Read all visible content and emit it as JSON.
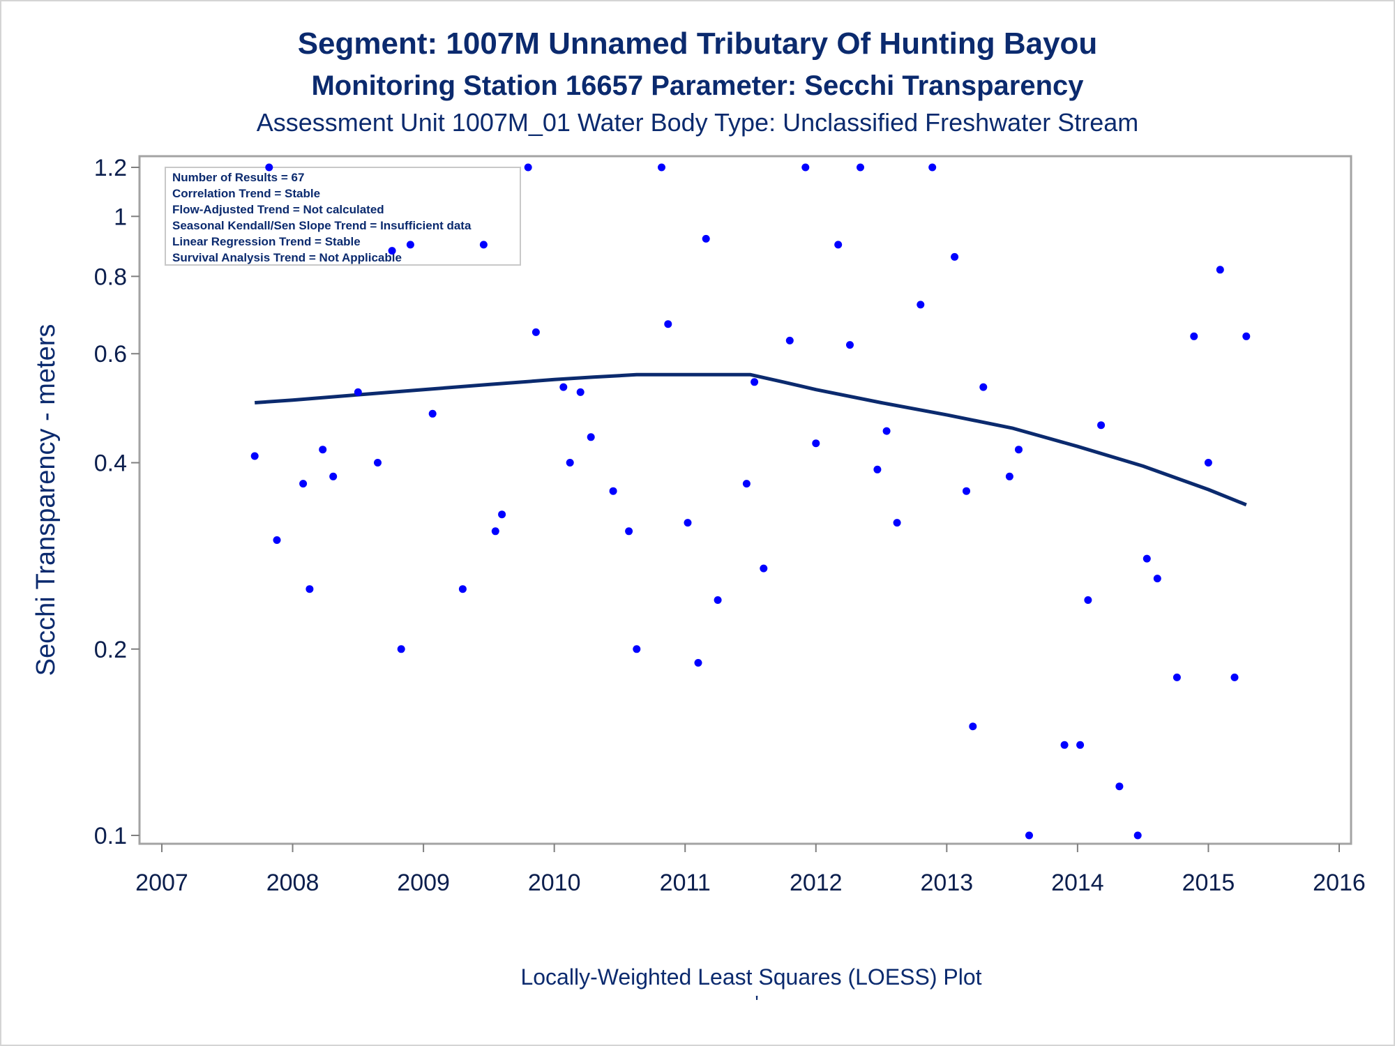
{
  "chart_data": {
    "type": "scatter",
    "title": "Segment: 1007M  Unnamed Tributary Of Hunting Bayou",
    "subtitle": "Monitoring Station 16657 Parameter: Secchi Transparency",
    "subtitle2": "Assessment Unit 1007M_01   Water Body Type: Unclassified Freshwater Stream",
    "xlabel": "Locally-Weighted Least Squares (LOESS) Plot",
    "footnote": "'",
    "ylabel": "Secchi Transparency - meters",
    "y_scale": "log",
    "xlim": [
      2007,
      2016
    ],
    "ylim": [
      0.1,
      1.2
    ],
    "x_ticks": [
      "2007",
      "2008",
      "2009",
      "2010",
      "2011",
      "2012",
      "2013",
      "2014",
      "2015",
      "2016"
    ],
    "y_ticks": [
      "0.1",
      "0.2",
      "0.4",
      "0.6",
      "0.8",
      "1",
      "1.2"
    ],
    "grid": false,
    "stats_box": {
      "placement": "top-left",
      "lines": [
        "Number of Results = 67",
        "Correlation Trend = Stable",
        "Flow-Adjusted Trend = Not calculated",
        "Seasonal Kendall/Sen Slope Trend = Insufficient data",
        "Linear Regression Trend = Stable",
        "Survival Analysis Trend = Not Applicable"
      ]
    },
    "series": [
      {
        "type": "scatter",
        "color": "#0000ff",
        "points": [
          [
            2007.71,
            0.41
          ],
          [
            2007.82,
            1.2
          ],
          [
            2007.88,
            0.3
          ],
          [
            2008.08,
            0.37
          ],
          [
            2008.13,
            0.25
          ],
          [
            2008.23,
            0.42
          ],
          [
            2008.31,
            0.38
          ],
          [
            2008.5,
            0.52
          ],
          [
            2008.65,
            0.4
          ],
          [
            2008.76,
            0.88
          ],
          [
            2008.83,
            0.2
          ],
          [
            2008.9,
            0.9
          ],
          [
            2009.07,
            0.48
          ],
          [
            2009.3,
            0.25
          ],
          [
            2009.46,
            0.9
          ],
          [
            2009.55,
            0.31
          ],
          [
            2009.6,
            0.33
          ],
          [
            2009.8,
            1.2
          ],
          [
            2009.86,
            0.65
          ],
          [
            2010.07,
            0.53
          ],
          [
            2010.12,
            0.4
          ],
          [
            2010.2,
            0.52
          ],
          [
            2010.28,
            0.44
          ],
          [
            2010.45,
            0.36
          ],
          [
            2010.57,
            0.31
          ],
          [
            2010.63,
            0.2
          ],
          [
            2010.82,
            1.2
          ],
          [
            2010.87,
            0.67
          ],
          [
            2011.02,
            0.32
          ],
          [
            2011.1,
            0.19
          ],
          [
            2011.16,
            0.92
          ],
          [
            2011.25,
            0.24
          ],
          [
            2011.47,
            0.37
          ],
          [
            2011.53,
            0.54
          ],
          [
            2011.6,
            0.27
          ],
          [
            2011.8,
            0.63
          ],
          [
            2011.92,
            1.2
          ],
          [
            2012.0,
            0.43
          ],
          [
            2012.17,
            0.9
          ],
          [
            2012.26,
            0.62
          ],
          [
            2012.34,
            1.2
          ],
          [
            2012.47,
            0.39
          ],
          [
            2012.54,
            0.45
          ],
          [
            2012.62,
            0.32
          ],
          [
            2012.8,
            0.72
          ],
          [
            2012.89,
            1.2
          ],
          [
            2013.06,
            0.86
          ],
          [
            2013.15,
            0.36
          ],
          [
            2013.2,
            0.15
          ],
          [
            2013.28,
            0.53
          ],
          [
            2013.48,
            0.38
          ],
          [
            2013.55,
            0.42
          ],
          [
            2013.63,
            0.1
          ],
          [
            2013.9,
            0.14
          ],
          [
            2014.02,
            0.14
          ],
          [
            2014.08,
            0.24
          ],
          [
            2014.18,
            0.46
          ],
          [
            2014.32,
            0.12
          ],
          [
            2014.46,
            0.1
          ],
          [
            2014.53,
            0.28
          ],
          [
            2014.61,
            0.26
          ],
          [
            2014.76,
            0.18
          ],
          [
            2014.89,
            0.64
          ],
          [
            2015.0,
            0.4
          ],
          [
            2015.09,
            0.82
          ],
          [
            2015.2,
            0.18
          ],
          [
            2015.29,
            0.64
          ]
        ]
      },
      {
        "type": "line",
        "color": "#0b2a6e",
        "points": [
          [
            2007.71,
            0.5
          ],
          [
            2008.0,
            0.505
          ],
          [
            2008.5,
            0.515
          ],
          [
            2009.0,
            0.525
          ],
          [
            2009.5,
            0.535
          ],
          [
            2010.0,
            0.545
          ],
          [
            2010.3,
            0.55
          ],
          [
            2010.63,
            0.555
          ],
          [
            2011.0,
            0.555
          ],
          [
            2011.5,
            0.555
          ],
          [
            2011.75,
            0.54
          ],
          [
            2012.0,
            0.525
          ],
          [
            2012.5,
            0.5
          ],
          [
            2013.0,
            0.478
          ],
          [
            2013.5,
            0.455
          ],
          [
            2014.0,
            0.425
          ],
          [
            2014.5,
            0.395
          ],
          [
            2015.0,
            0.362
          ],
          [
            2015.29,
            0.342
          ]
        ]
      }
    ]
  }
}
